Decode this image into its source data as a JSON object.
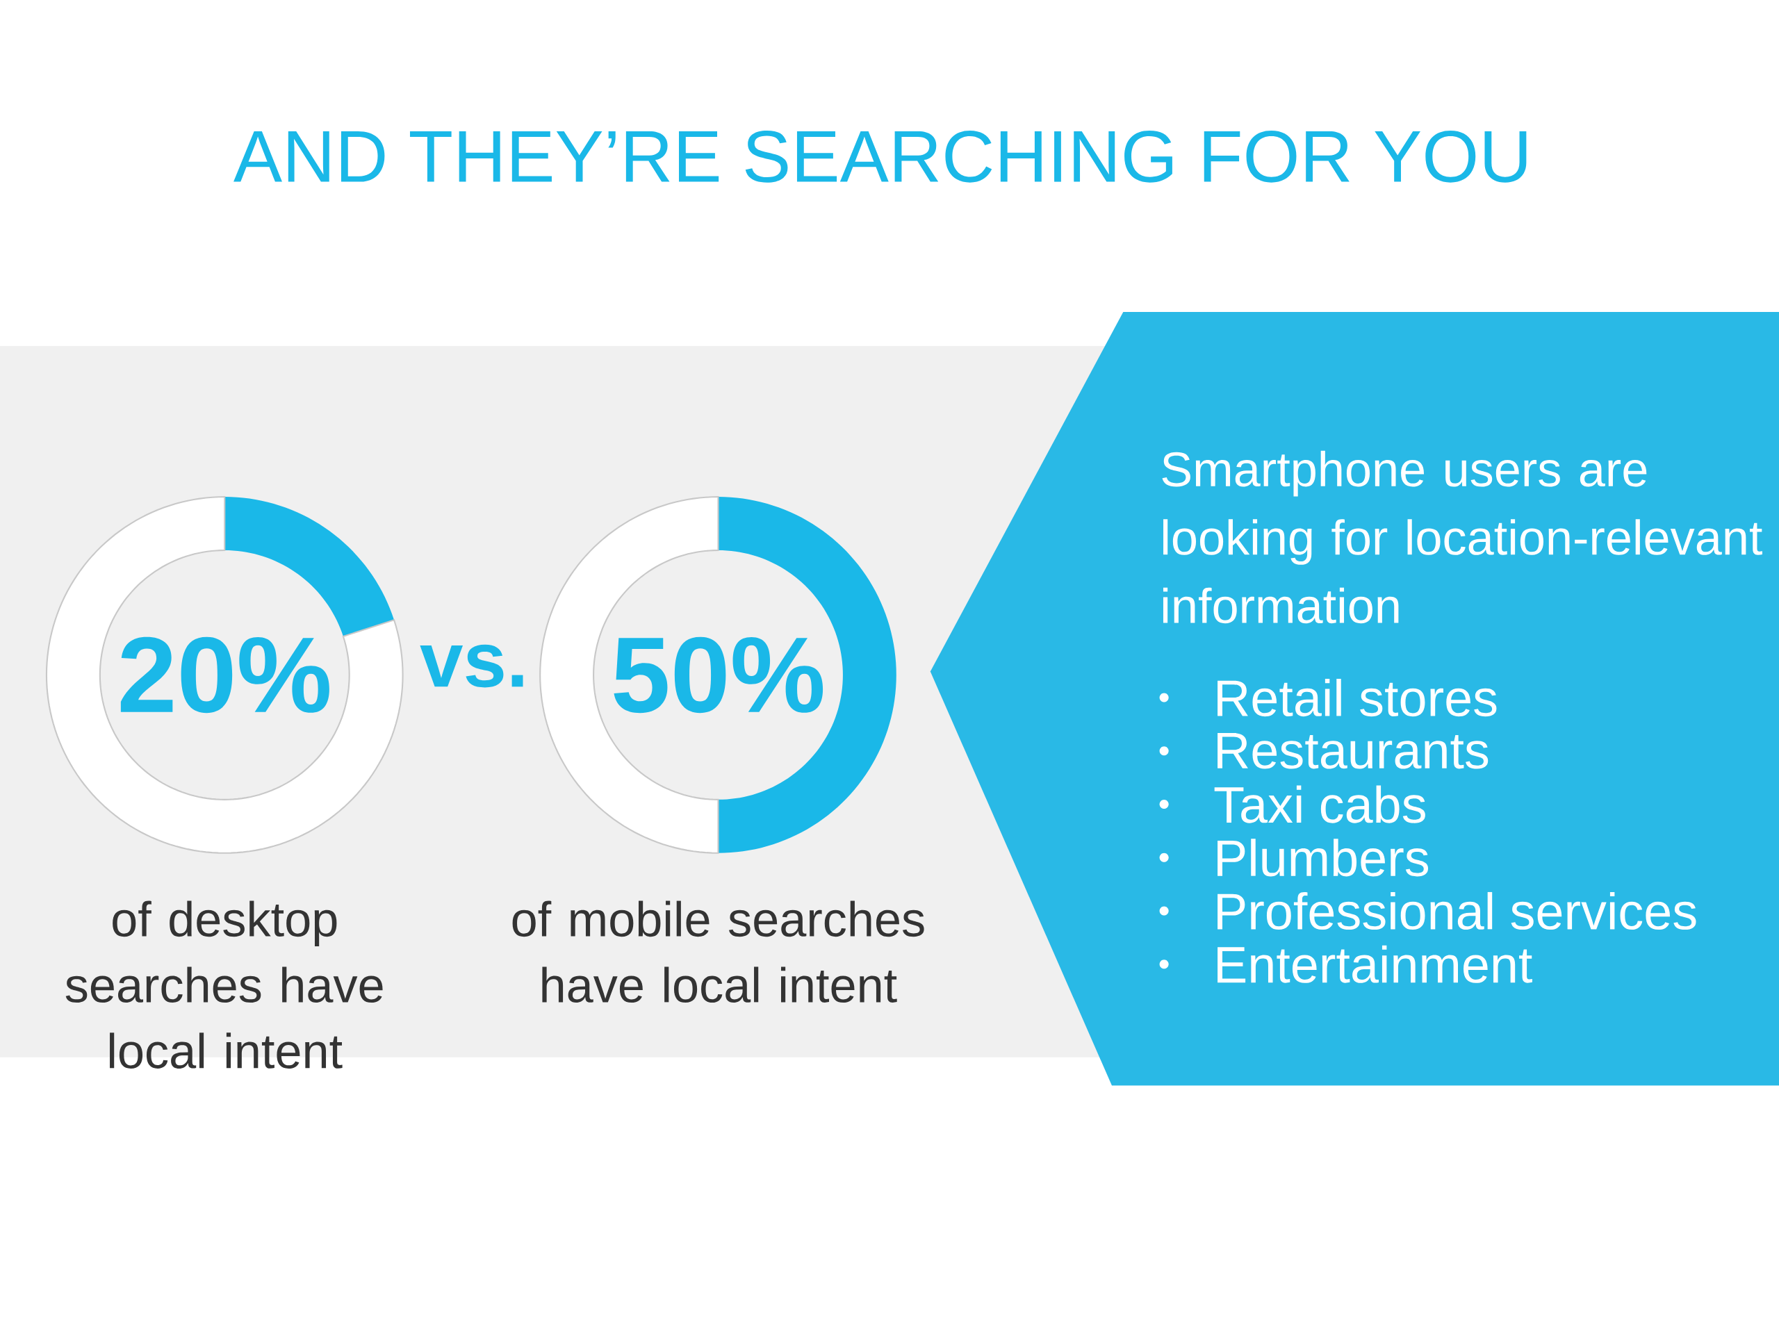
{
  "chart_data": [
    {
      "type": "donut",
      "title": "AND THEY’RE SEARCHING FOR YOU",
      "categories": [
        null,
        null
      ],
      "values": [
        20,
        80
      ],
      "colors": [
        "#1ab8e8",
        "#ffffff"
      ],
      "value_labels": [
        "20%",
        null
      ],
      "annotations": [
        "of desktop searches have local intent",
        "vs."
      ]
    },
    {
      "type": "donut",
      "categories": [
        null,
        null
      ],
      "values": [
        50,
        50
      ],
      "colors": [
        "#1ab8e8",
        "#ffffff"
      ],
      "value_labels": [
        "50%",
        null
      ],
      "annotations": [
        "of mobile searches have local intent"
      ]
    },
    {
      "type": "other",
      "title": "Smartphone users are looking for location-relevant information",
      "annotations": [
        "Retail stores",
        "Restaurants",
        "Taxi cabs",
        "Plumbers",
        "Professional services",
        "Entertainment"
      ]
    }
  ]
}
